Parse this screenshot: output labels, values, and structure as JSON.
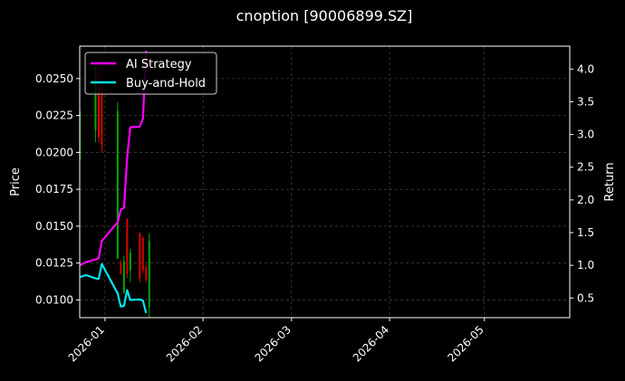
{
  "chart_data": {
    "type": "line",
    "title": "cnoption [90006899.SZ]",
    "ylabel": "Price",
    "y2label": "Return",
    "x_ticks": [
      "2026-01",
      "2026-02",
      "2026-03",
      "2026-04",
      "2026-05"
    ],
    "x_range": [
      "2025-12-24",
      "2026-05-28"
    ],
    "y_ticks": [
      "0.0100",
      "0.0125",
      "0.0150",
      "0.0175",
      "0.0200",
      "0.0225",
      "0.0250"
    ],
    "ylim": [
      0.0088,
      0.0272
    ],
    "y2_ticks": [
      "0.5",
      "1.0",
      "1.5",
      "2.0",
      "2.5",
      "3.0",
      "3.5",
      "4.0"
    ],
    "y2lim": [
      0.2,
      4.35
    ],
    "grid": true,
    "legend_position": "top-left",
    "colors": {
      "background": "#000000",
      "ai_strategy": "#ff00ff",
      "buy_and_hold": "#00e5ee",
      "up_candle": "#00aa00",
      "down_candle": "#dd0000",
      "grid": "#555555"
    },
    "series": [
      {
        "name": "AI Strategy",
        "axis": "right",
        "x": [
          "2025-12-24",
          "2025-12-26",
          "2025-12-29",
          "2025-12-30",
          "2025-12-31",
          "2026-01-05",
          "2026-01-06",
          "2026-01-07",
          "2026-01-08",
          "2026-01-09",
          "2026-01-12",
          "2026-01-13",
          "2026-01-14"
        ],
        "values": [
          1.0,
          1.05,
          1.09,
          1.11,
          1.37,
          1.66,
          1.85,
          1.88,
          2.65,
          3.11,
          3.12,
          3.24,
          4.28
        ]
      },
      {
        "name": "Buy-and-Hold",
        "axis": "right",
        "x": [
          "2025-12-24",
          "2025-12-26",
          "2025-12-29",
          "2025-12-30",
          "2025-12-31",
          "2026-01-05",
          "2026-01-06",
          "2026-01-07",
          "2026-01-08",
          "2026-01-09",
          "2026-01-12",
          "2026-01-13",
          "2026-01-14"
        ],
        "values": [
          0.82,
          0.85,
          0.8,
          0.79,
          1.02,
          0.57,
          0.37,
          0.38,
          0.62,
          0.47,
          0.48,
          0.46,
          0.27
        ]
      }
    ],
    "candles": [
      {
        "date": "2025-12-24",
        "open": 0.0195,
        "high": 0.0229,
        "low": 0.019,
        "close": 0.0228
      },
      {
        "date": "2025-12-29",
        "open": 0.0215,
        "high": 0.0262,
        "low": 0.0207,
        "close": 0.0258
      },
      {
        "date": "2025-12-30",
        "open": 0.025,
        "high": 0.0258,
        "low": 0.0207,
        "close": 0.021
      },
      {
        "date": "2025-12-31",
        "open": 0.0248,
        "high": 0.0268,
        "low": 0.02,
        "close": 0.0205
      },
      {
        "date": "2026-01-05",
        "open": 0.0128,
        "high": 0.0234,
        "low": 0.0128,
        "close": 0.0228
      },
      {
        "date": "2026-01-06",
        "open": 0.0125,
        "high": 0.0127,
        "low": 0.0117,
        "close": 0.0118
      },
      {
        "date": "2026-01-07",
        "open": 0.0105,
        "high": 0.013,
        "low": 0.0104,
        "close": 0.0126
      },
      {
        "date": "2026-01-08",
        "open": 0.0155,
        "high": 0.0155,
        "low": 0.0115,
        "close": 0.0118
      },
      {
        "date": "2026-01-09",
        "open": 0.012,
        "high": 0.0135,
        "low": 0.0112,
        "close": 0.0132
      },
      {
        "date": "2026-01-12",
        "open": 0.0145,
        "high": 0.0146,
        "low": 0.0112,
        "close": 0.0115
      },
      {
        "date": "2026-01-13",
        "open": 0.0142,
        "high": 0.0143,
        "low": 0.0118,
        "close": 0.012
      },
      {
        "date": "2026-01-14",
        "open": 0.0122,
        "high": 0.0124,
        "low": 0.0112,
        "close": 0.0114
      },
      {
        "date": "2026-01-15",
        "open": 0.0095,
        "high": 0.0145,
        "low": 0.0088,
        "close": 0.014
      }
    ]
  }
}
